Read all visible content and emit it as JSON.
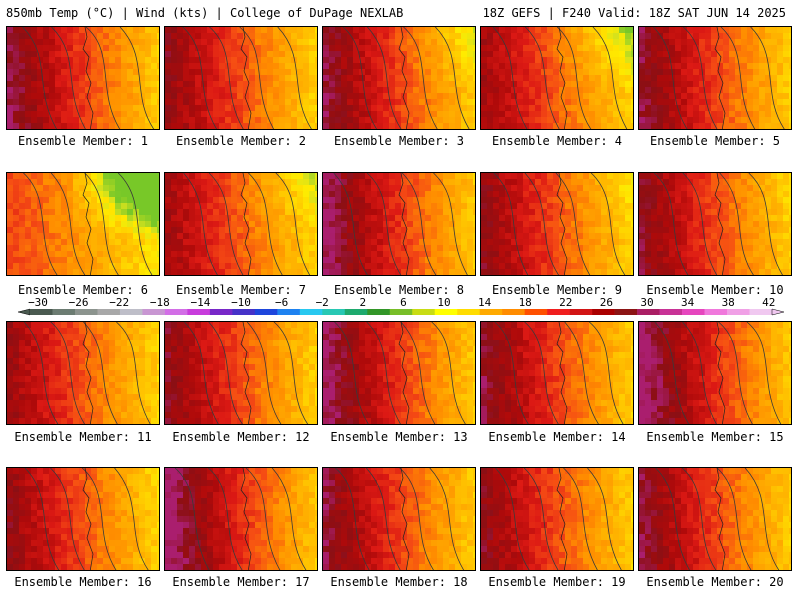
{
  "header": {
    "left": "850mb Temp (°C) | Wind (kts) | College of DuPage NEXLAB",
    "right": "18Z GEFS | F240 Valid: 18Z SAT JUN 14 2025"
  },
  "panels": [
    {
      "label": "Ensemble Member: 1"
    },
    {
      "label": "Ensemble Member: 2"
    },
    {
      "label": "Ensemble Member: 3"
    },
    {
      "label": "Ensemble Member: 4"
    },
    {
      "label": "Ensemble Member: 5"
    },
    {
      "label": "Ensemble Member: 6"
    },
    {
      "label": "Ensemble Member: 7"
    },
    {
      "label": "Ensemble Member: 8"
    },
    {
      "label": "Ensemble Member: 9"
    },
    {
      "label": "Ensemble Member: 10"
    },
    {
      "label": "Ensemble Member: 11"
    },
    {
      "label": "Ensemble Member: 12"
    },
    {
      "label": "Ensemble Member: 13"
    },
    {
      "label": "Ensemble Member: 14"
    },
    {
      "label": "Ensemble Member: 15"
    },
    {
      "label": "Ensemble Member: 16"
    },
    {
      "label": "Ensemble Member: 17"
    },
    {
      "label": "Ensemble Member: 18"
    },
    {
      "label": "Ensemble Member: 19"
    },
    {
      "label": "Ensemble Member: 20"
    }
  ],
  "colorbar": {
    "labels": [
      "−30",
      "−26",
      "−22",
      "−18",
      "−14",
      "−10",
      "−6",
      "−2",
      "2",
      "6",
      "10",
      "14",
      "18",
      "22",
      "26",
      "30",
      "34",
      "38",
      "42"
    ],
    "colors": [
      "#4a5a50",
      "#6c7c72",
      "#8c948e",
      "#a8a8a8",
      "#bebec8",
      "#c896d2",
      "#d26ee6",
      "#c83cdc",
      "#7828c8",
      "#4632c8",
      "#1e46dc",
      "#1e82f0",
      "#28c8f0",
      "#28c8b4",
      "#1eaa6e",
      "#329628",
      "#78be28",
      "#c8dc14",
      "#ffff00",
      "#ffdc00",
      "#ffaa00",
      "#ff8c00",
      "#ff5000",
      "#f01e1e",
      "#d21414",
      "#aa0000",
      "#8c1414",
      "#aa1e64",
      "#c83296",
      "#e646be",
      "#f078dc",
      "#f0a0e6",
      "#f0c8f0"
    ]
  }
}
